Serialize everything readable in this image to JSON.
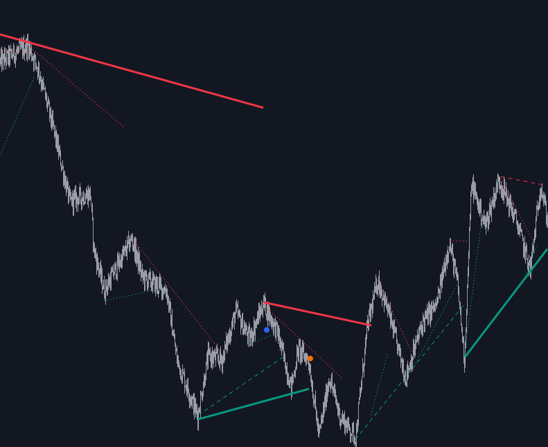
{
  "colors": {
    "background": "#131722",
    "price": "#b2b5be",
    "resistance": "#f23645",
    "support": "#089981",
    "marker_blue": "#2962ff",
    "marker_orange": "#ff6d00"
  },
  "chart_data": {
    "type": "line",
    "title": "",
    "xlabel": "",
    "ylabel": "",
    "axes_visible": false,
    "grid": false,
    "xlim": [
      0,
      790
    ],
    "ylim": [
      0,
      100
    ],
    "price_path": [
      [
        0,
        86.1
      ],
      [
        40,
        89.9
      ],
      [
        55,
        84.5
      ],
      [
        80,
        69
      ],
      [
        100,
        55
      ],
      [
        130,
        56.7
      ],
      [
        135,
        44.3
      ],
      [
        150,
        35
      ],
      [
        190,
        46.6
      ],
      [
        205,
        38
      ],
      [
        240,
        35
      ],
      [
        255,
        19.5
      ],
      [
        285,
        7
      ],
      [
        300,
        20.3
      ],
      [
        320,
        19.5
      ],
      [
        340,
        30.3
      ],
      [
        360,
        24.1
      ],
      [
        380,
        32.2
      ],
      [
        400,
        25.7
      ],
      [
        420,
        13.3
      ],
      [
        430,
        21.8
      ],
      [
        445,
        19.5
      ],
      [
        460,
        2.5
      ],
      [
        475,
        15.6
      ],
      [
        490,
        7
      ],
      [
        513,
        2.2
      ],
      [
        530,
        27.2
      ],
      [
        545,
        37.3
      ],
      [
        560,
        30.3
      ],
      [
        585,
        15.6
      ],
      [
        610,
        28
      ],
      [
        630,
        31.9
      ],
      [
        648,
        45.8
      ],
      [
        660,
        36.5
      ],
      [
        670,
        19.5
      ],
      [
        680,
        59
      ],
      [
        700,
        49.5
      ],
      [
        720,
        59.8
      ],
      [
        745,
        50.5
      ],
      [
        765,
        39.6
      ],
      [
        780,
        59
      ],
      [
        790,
        50.5
      ]
    ],
    "trendlines": [
      {
        "kind": "resistance",
        "style": "solid",
        "from": [
          0,
          92.3
        ],
        "to": [
          380,
          75.9
        ]
      },
      {
        "kind": "resistance",
        "style": "solid",
        "from": [
          380,
          32.4
        ],
        "to": [
          536,
          27.2
        ]
      },
      {
        "kind": "support",
        "style": "solid",
        "from": [
          286,
          6.2
        ],
        "to": [
          446,
          13.0
        ]
      },
      {
        "kind": "support",
        "style": "solid",
        "from": [
          671,
          20.1
        ],
        "to": [
          790,
          44.3
        ]
      },
      {
        "kind": "resistance",
        "style": "dotted",
        "from": [
          0,
          88.7
        ],
        "to": [
          40,
          88.1
        ]
      },
      {
        "kind": "resistance",
        "style": "dotted",
        "from": [
          40,
          89.9
        ],
        "to": [
          180,
          71.4
        ]
      },
      {
        "kind": "resistance",
        "style": "dotted",
        "from": [
          190,
          46.9
        ],
        "to": [
          320,
          21.1
        ]
      },
      {
        "kind": "resistance",
        "style": "dotted",
        "from": [
          380,
          31.9
        ],
        "to": [
          495,
          15.2
        ]
      },
      {
        "kind": "resistance",
        "style": "dotted",
        "from": [
          545,
          37.3
        ],
        "to": [
          595,
          21.1
        ]
      },
      {
        "kind": "resistance",
        "style": "dotted",
        "from": [
          650,
          46.1
        ],
        "to": [
          675,
          46.1
        ]
      },
      {
        "kind": "resistance",
        "style": "dotted",
        "from": [
          723,
          60.1
        ],
        "to": [
          770,
          45.8
        ]
      },
      {
        "kind": "resistance",
        "style": "dashed",
        "from": [
          723,
          60.5
        ],
        "to": [
          782,
          58.7
        ]
      },
      {
        "kind": "support",
        "style": "dotted",
        "from": [
          0,
          65.2
        ],
        "to": [
          50,
          83.0
        ]
      },
      {
        "kind": "support",
        "style": "dotted",
        "from": [
          150,
          32.7
        ],
        "to": [
          230,
          35.3
        ]
      },
      {
        "kind": "support",
        "style": "dotted",
        "from": [
          360,
          23.1
        ],
        "to": [
          395,
          25.2
        ]
      },
      {
        "kind": "support",
        "style": "dashed",
        "from": [
          286,
          7.1
        ],
        "to": [
          410,
          20.3
        ]
      },
      {
        "kind": "support",
        "style": "dashed",
        "from": [
          513,
          1.7
        ],
        "to": [
          670,
          31.9
        ]
      },
      {
        "kind": "support",
        "style": "dotted",
        "from": [
          535,
          7.1
        ],
        "to": [
          560,
          21.1
        ]
      },
      {
        "kind": "support",
        "style": "dotted",
        "from": [
          600,
          18.7
        ],
        "to": [
          660,
          36.5
        ]
      },
      {
        "kind": "support",
        "style": "dotted",
        "from": [
          671,
          21.1
        ],
        "to": [
          695,
          50.5
        ]
      },
      {
        "kind": "support",
        "style": "dotted",
        "from": [
          760,
          38.9
        ],
        "to": [
          775,
          45.0
        ]
      }
    ],
    "markers": [
      {
        "color": "marker_blue",
        "x": 385,
        "y": 26.2
      },
      {
        "color": "marker_orange",
        "x": 448,
        "y": 19.8
      }
    ]
  }
}
